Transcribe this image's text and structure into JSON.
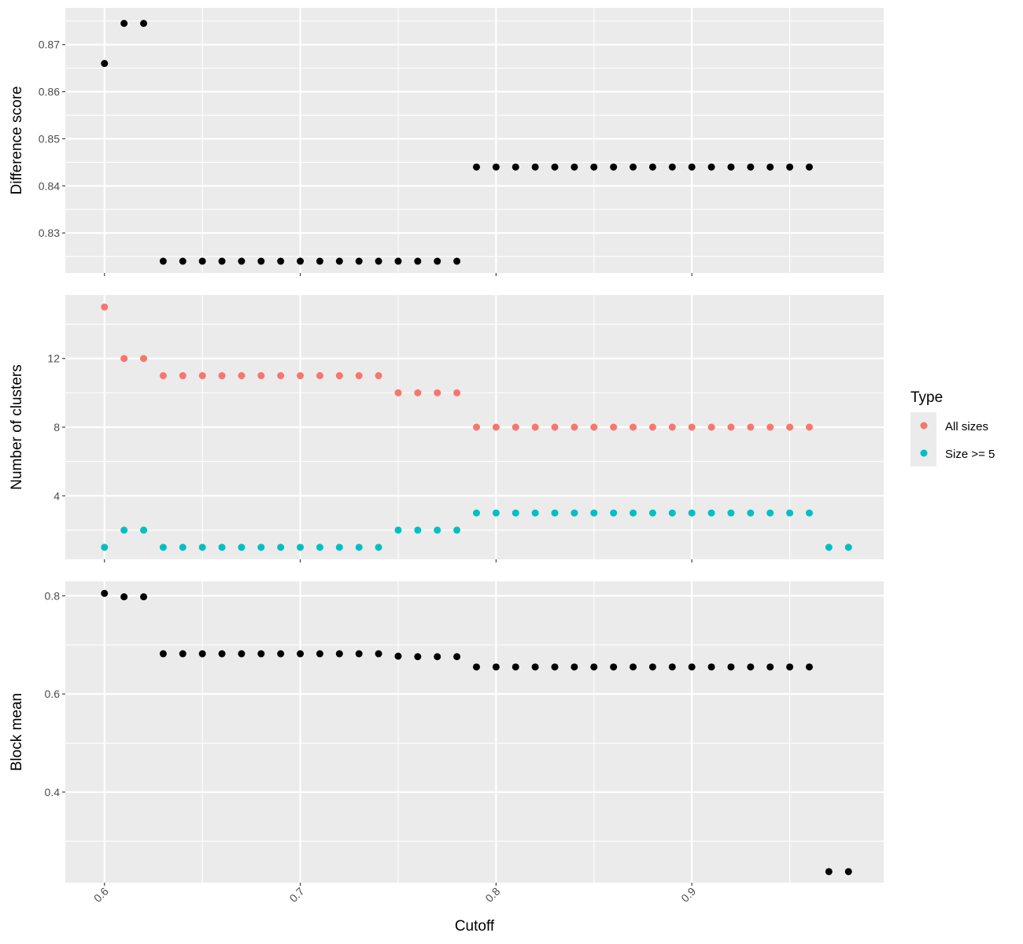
{
  "chart_data": {
    "type": "scatter",
    "xlabel": "Cutoff",
    "x_ticks": [
      0.6,
      0.7,
      0.8,
      0.9
    ],
    "x_tick_labels": [
      "0.6",
      "0.7",
      "0.8",
      "0.9"
    ],
    "xlim": [
      0.58,
      0.998
    ],
    "legend": {
      "title": "Type",
      "placement": "right",
      "entries": [
        {
          "label": "All sizes",
          "color": "#F8766D"
        },
        {
          "label": "Size >= 5",
          "color": "#00BFC4"
        }
      ]
    },
    "colors": {
      "panel_bg": "#EBEBEB",
      "grid": "#FFFFFF",
      "point": "#000000"
    },
    "panels": [
      {
        "ylabel": "Difference score",
        "ylim": [
          0.8215,
          0.8778
        ],
        "y_ticks": [
          0.83,
          0.84,
          0.85,
          0.86,
          0.87
        ],
        "y_tick_labels": [
          "0.83",
          "0.84",
          "0.85",
          "0.86",
          "0.87"
        ],
        "series": [
          {
            "color": "#000000",
            "points": [
              [
                0.6,
                0.866
              ],
              [
                0.61,
                0.8745
              ],
              [
                0.62,
                0.8745
              ],
              [
                0.63,
                0.824
              ],
              [
                0.64,
                0.824
              ],
              [
                0.65,
                0.824
              ],
              [
                0.66,
                0.824
              ],
              [
                0.67,
                0.824
              ],
              [
                0.68,
                0.824
              ],
              [
                0.69,
                0.824
              ],
              [
                0.7,
                0.824
              ],
              [
                0.71,
                0.824
              ],
              [
                0.72,
                0.824
              ],
              [
                0.73,
                0.824
              ],
              [
                0.74,
                0.824
              ],
              [
                0.75,
                0.824
              ],
              [
                0.76,
                0.824
              ],
              [
                0.77,
                0.824
              ],
              [
                0.78,
                0.824
              ],
              [
                0.79,
                0.844
              ],
              [
                0.8,
                0.844
              ],
              [
                0.81,
                0.844
              ],
              [
                0.82,
                0.844
              ],
              [
                0.83,
                0.844
              ],
              [
                0.84,
                0.844
              ],
              [
                0.85,
                0.844
              ],
              [
                0.86,
                0.844
              ],
              [
                0.87,
                0.844
              ],
              [
                0.88,
                0.844
              ],
              [
                0.89,
                0.844
              ],
              [
                0.9,
                0.844
              ],
              [
                0.91,
                0.844
              ],
              [
                0.92,
                0.844
              ],
              [
                0.93,
                0.844
              ],
              [
                0.94,
                0.844
              ],
              [
                0.95,
                0.844
              ],
              [
                0.96,
                0.844
              ]
            ]
          }
        ]
      },
      {
        "ylabel": "Number of clusters",
        "ylim": [
          0.3,
          15.7
        ],
        "y_ticks": [
          4,
          8,
          12
        ],
        "y_tick_labels": [
          "4",
          "8",
          "12"
        ],
        "series": [
          {
            "name": "All sizes",
            "color": "#F8766D",
            "points": [
              [
                0.6,
                15
              ],
              [
                0.61,
                12
              ],
              [
                0.62,
                12
              ],
              [
                0.63,
                11
              ],
              [
                0.64,
                11
              ],
              [
                0.65,
                11
              ],
              [
                0.66,
                11
              ],
              [
                0.67,
                11
              ],
              [
                0.68,
                11
              ],
              [
                0.69,
                11
              ],
              [
                0.7,
                11
              ],
              [
                0.71,
                11
              ],
              [
                0.72,
                11
              ],
              [
                0.73,
                11
              ],
              [
                0.74,
                11
              ],
              [
                0.75,
                10
              ],
              [
                0.76,
                10
              ],
              [
                0.77,
                10
              ],
              [
                0.78,
                10
              ],
              [
                0.79,
                8
              ],
              [
                0.8,
                8
              ],
              [
                0.81,
                8
              ],
              [
                0.82,
                8
              ],
              [
                0.83,
                8
              ],
              [
                0.84,
                8
              ],
              [
                0.85,
                8
              ],
              [
                0.86,
                8
              ],
              [
                0.87,
                8
              ],
              [
                0.88,
                8
              ],
              [
                0.89,
                8
              ],
              [
                0.9,
                8
              ],
              [
                0.91,
                8
              ],
              [
                0.92,
                8
              ],
              [
                0.93,
                8
              ],
              [
                0.94,
                8
              ],
              [
                0.95,
                8
              ],
              [
                0.96,
                8
              ]
            ]
          },
          {
            "name": "Size >= 5",
            "color": "#00BFC4",
            "points": [
              [
                0.6,
                1
              ],
              [
                0.61,
                2
              ],
              [
                0.62,
                2
              ],
              [
                0.63,
                1
              ],
              [
                0.64,
                1
              ],
              [
                0.65,
                1
              ],
              [
                0.66,
                1
              ],
              [
                0.67,
                1
              ],
              [
                0.68,
                1
              ],
              [
                0.69,
                1
              ],
              [
                0.7,
                1
              ],
              [
                0.71,
                1
              ],
              [
                0.72,
                1
              ],
              [
                0.73,
                1
              ],
              [
                0.74,
                1
              ],
              [
                0.75,
                2
              ],
              [
                0.76,
                2
              ],
              [
                0.77,
                2
              ],
              [
                0.78,
                2
              ],
              [
                0.79,
                3
              ],
              [
                0.8,
                3
              ],
              [
                0.81,
                3
              ],
              [
                0.82,
                3
              ],
              [
                0.83,
                3
              ],
              [
                0.84,
                3
              ],
              [
                0.85,
                3
              ],
              [
                0.86,
                3
              ],
              [
                0.87,
                3
              ],
              [
                0.88,
                3
              ],
              [
                0.89,
                3
              ],
              [
                0.9,
                3
              ],
              [
                0.91,
                3
              ],
              [
                0.92,
                3
              ],
              [
                0.93,
                3
              ],
              [
                0.94,
                3
              ],
              [
                0.95,
                3
              ],
              [
                0.96,
                3
              ],
              [
                0.97,
                1
              ],
              [
                0.98,
                1
              ]
            ]
          }
        ]
      },
      {
        "ylabel": "Block mean",
        "ylim": [
          0.2155,
          0.8295
        ],
        "y_ticks": [
          0.4,
          0.6,
          0.8
        ],
        "y_tick_labels": [
          "0.4",
          "0.6",
          "0.8"
        ],
        "series": [
          {
            "color": "#000000",
            "points": [
              [
                0.6,
                0.805
              ],
              [
                0.61,
                0.798
              ],
              [
                0.62,
                0.798
              ],
              [
                0.63,
                0.682
              ],
              [
                0.64,
                0.682
              ],
              [
                0.65,
                0.682
              ],
              [
                0.66,
                0.682
              ],
              [
                0.67,
                0.682
              ],
              [
                0.68,
                0.682
              ],
              [
                0.69,
                0.682
              ],
              [
                0.7,
                0.682
              ],
              [
                0.71,
                0.682
              ],
              [
                0.72,
                0.682
              ],
              [
                0.73,
                0.682
              ],
              [
                0.74,
                0.682
              ],
              [
                0.75,
                0.677
              ],
              [
                0.76,
                0.676
              ],
              [
                0.77,
                0.676
              ],
              [
                0.78,
                0.676
              ],
              [
                0.79,
                0.655
              ],
              [
                0.8,
                0.655
              ],
              [
                0.81,
                0.655
              ],
              [
                0.82,
                0.655
              ],
              [
                0.83,
                0.655
              ],
              [
                0.84,
                0.655
              ],
              [
                0.85,
                0.655
              ],
              [
                0.86,
                0.655
              ],
              [
                0.87,
                0.655
              ],
              [
                0.88,
                0.655
              ],
              [
                0.89,
                0.655
              ],
              [
                0.9,
                0.655
              ],
              [
                0.91,
                0.655
              ],
              [
                0.92,
                0.655
              ],
              [
                0.93,
                0.655
              ],
              [
                0.94,
                0.655
              ],
              [
                0.95,
                0.655
              ],
              [
                0.96,
                0.655
              ],
              [
                0.97,
                0.238
              ],
              [
                0.98,
                0.238
              ]
            ]
          }
        ]
      }
    ]
  }
}
